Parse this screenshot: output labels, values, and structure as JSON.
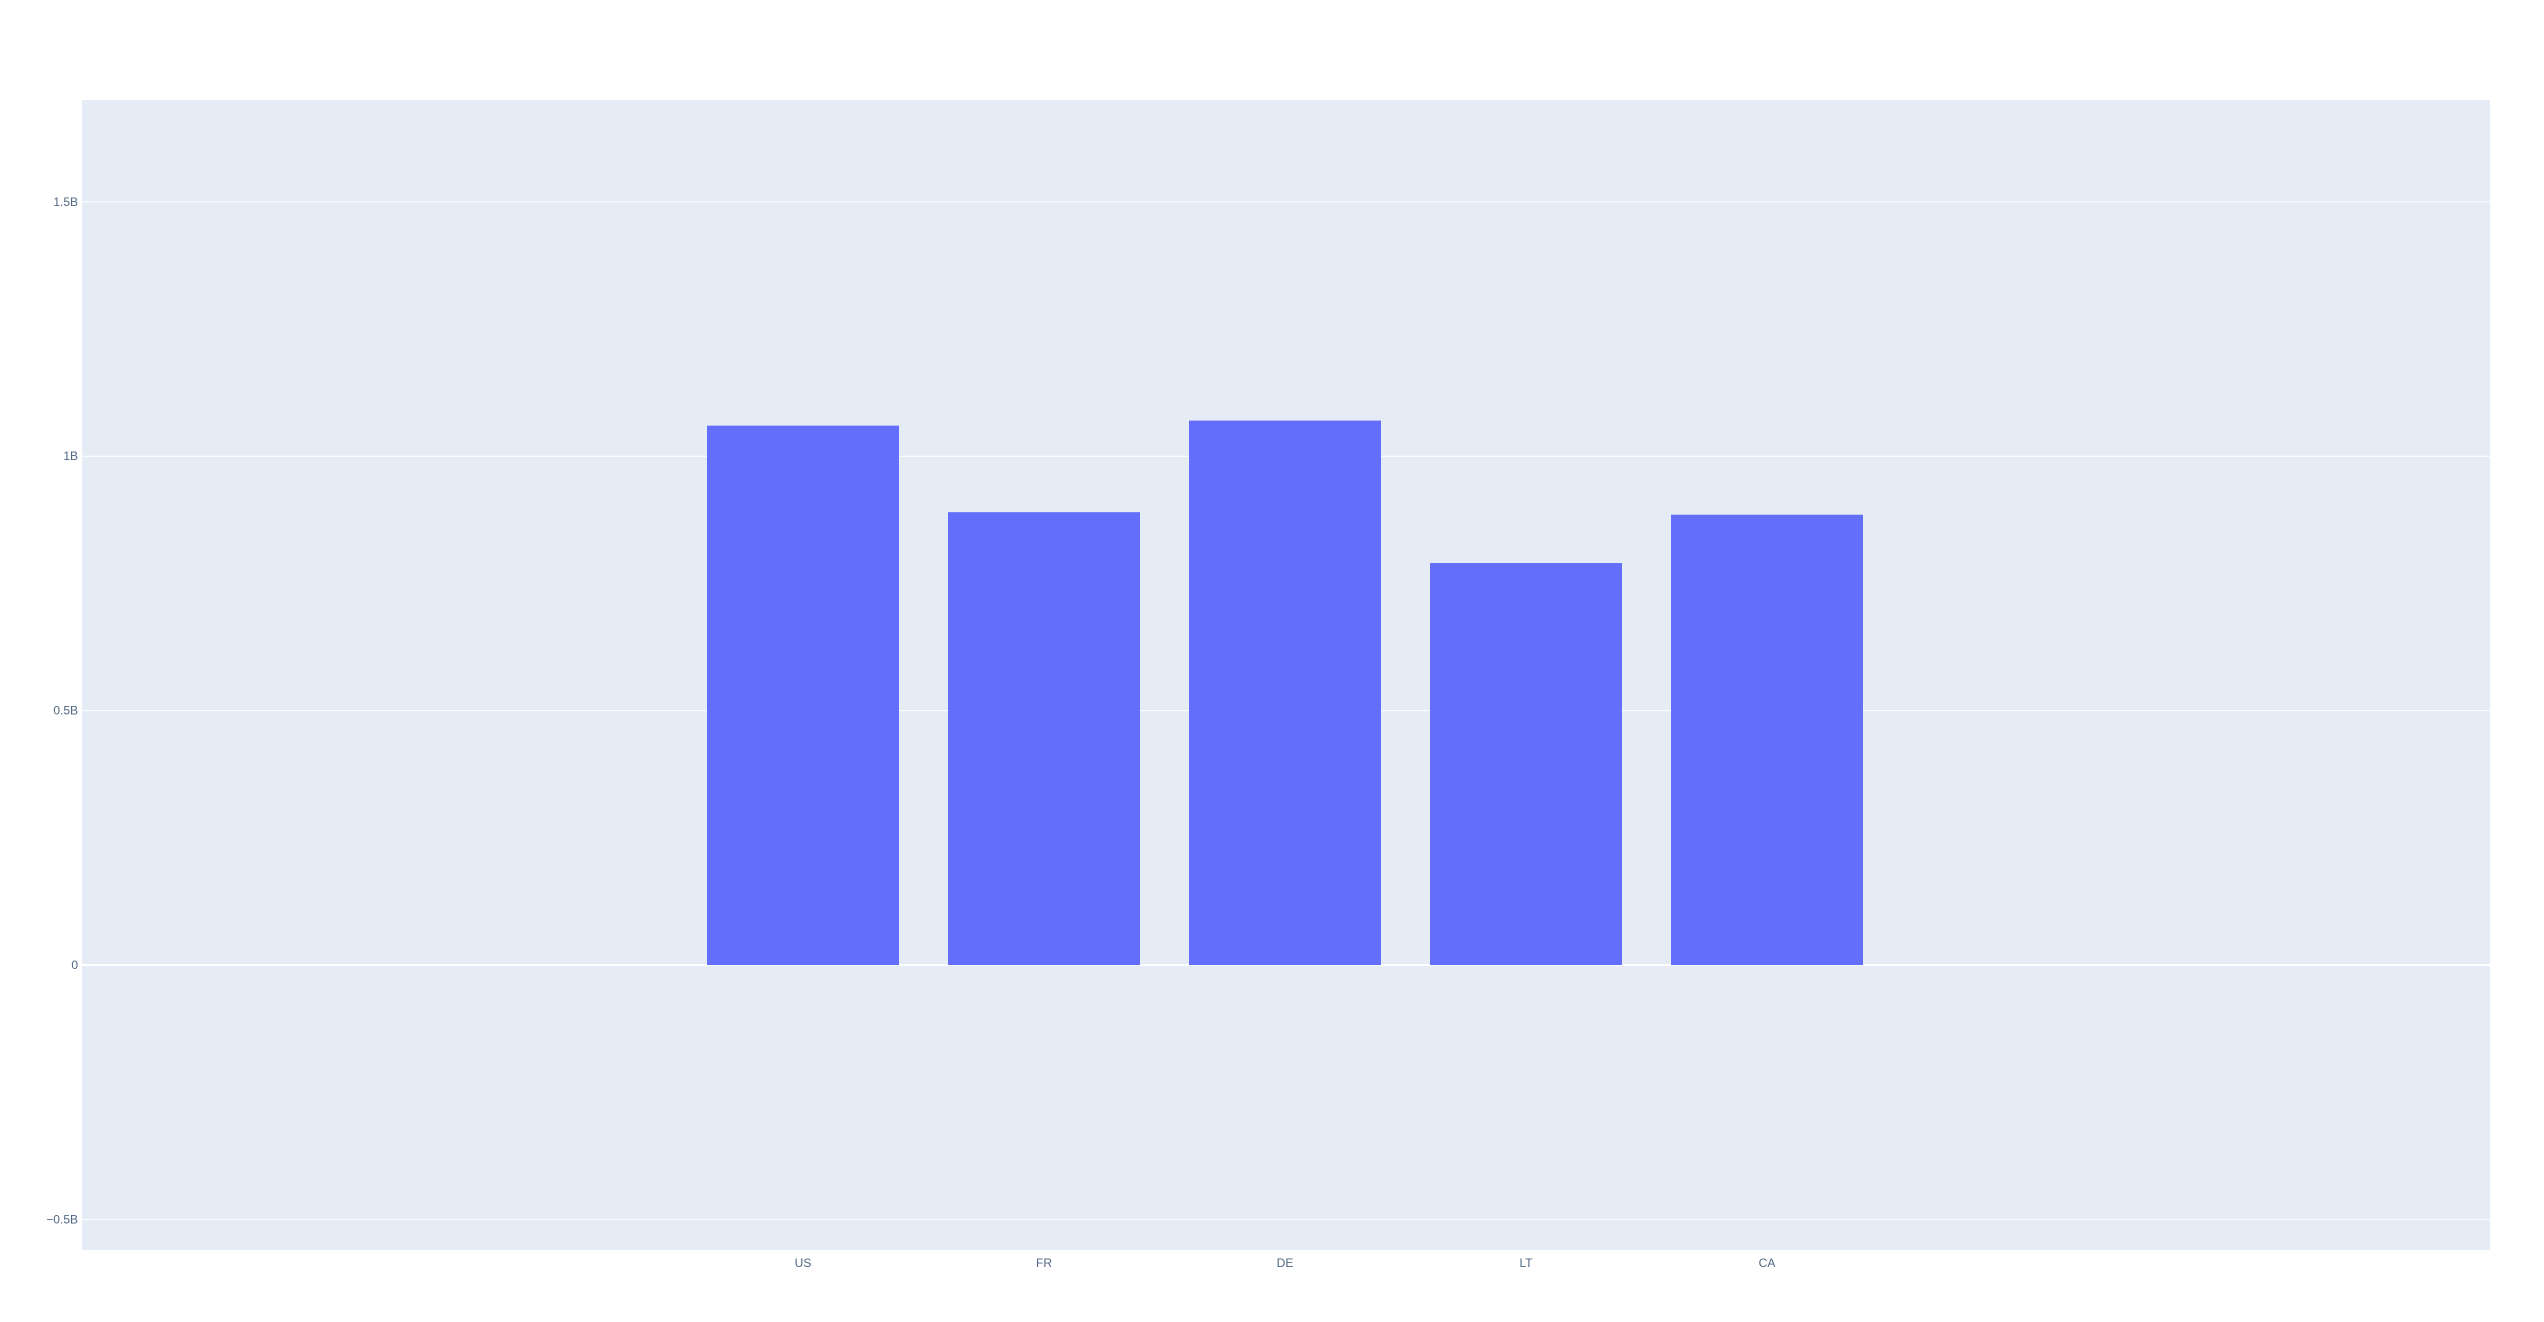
{
  "chart_data": {
    "type": "bar",
    "title": "",
    "xlabel": "",
    "ylabel": "",
    "categories": [
      "US",
      "FR",
      "DE",
      "LT",
      "CA"
    ],
    "values": [
      1060000000,
      890000000,
      1070000000,
      790000000,
      885000000
    ],
    "ylim": [
      -560000000,
      1700000000
    ],
    "yticks": [
      -500000000,
      0,
      500000000,
      1000000000,
      1500000000
    ],
    "ytick_labels": [
      "−0.5B",
      "0",
      "0.5B",
      "1B",
      "1.5B"
    ],
    "grid": true,
    "legend": "none",
    "colors": {
      "bar": "#636efa",
      "plot_bg": "#e5ecf6",
      "paper_bg": "#ffffff",
      "grid": "#ffffff",
      "tick_text": "#506784"
    }
  }
}
